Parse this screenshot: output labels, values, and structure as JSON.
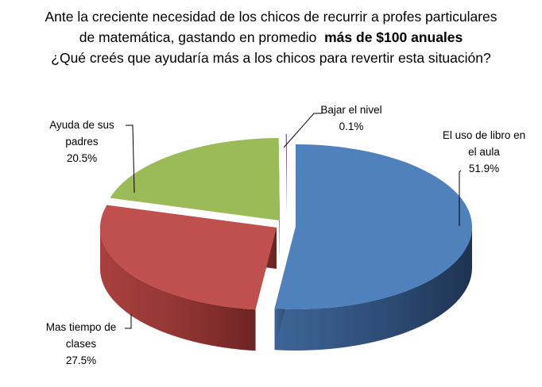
{
  "title": {
    "line1": "Ante la creciente necesidad de los chicos de recurrir a profes particulares",
    "line2_prefix": "de matemática, gastando en promedio",
    "line2_bold": "más de $100 anuales",
    "line3": "¿Qué creés que ayudaría más a los chicos para revertir esta situación?"
  },
  "chart_data": {
    "type": "pie",
    "style": "3d-exploded",
    "slices": [
      {
        "label_lines": [
          "El uso de libro en",
          "el aula"
        ],
        "percent_text": "51.9%",
        "value": 51.9,
        "color": "#4F81BD"
      },
      {
        "label_lines": [
          "Mas tiempo de",
          "clases"
        ],
        "percent_text": "27.5%",
        "value": 27.5,
        "color": "#C0504D"
      },
      {
        "label_lines": [
          "Ayuda de sus",
          "padres"
        ],
        "percent_text": "20.5%",
        "value": 20.5,
        "color": "#9BBB59"
      },
      {
        "label_lines": [
          "Bajar el nivel"
        ],
        "percent_text": "0.1%",
        "value": 0.1,
        "color": "#8064A2"
      }
    ]
  }
}
